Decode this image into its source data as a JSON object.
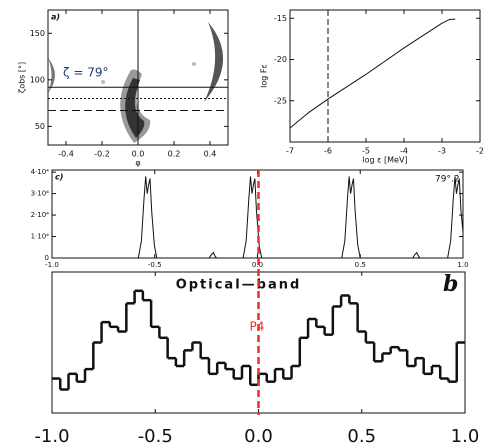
{
  "chart_data": [
    {
      "type": "density",
      "panel_label": "a)",
      "annotation": "ζ = 79°",
      "xlabel": "φ",
      "ylabel": "ζobs [°]",
      "xlim": [
        -0.5,
        0.5
      ],
      "ylim": [
        30,
        175
      ],
      "xticks": [
        -0.4,
        -0.2,
        {
          "value": 0,
          "label": "0.0"
        },
        0.2,
        0.4
      ],
      "yticks": [
        50,
        100,
        150
      ],
      "vlines": [
        0
      ],
      "hlines": [
        92,
        80,
        67
      ]
    },
    {
      "type": "line",
      "xlabel": "log ε [MeV]",
      "ylabel": "log Fε",
      "xlim": [
        -7,
        -2
      ],
      "ylim": [
        -30,
        -14
      ],
      "xticks": [
        -7,
        -6,
        -5,
        -4,
        -3,
        -2
      ],
      "yticks": [
        -25,
        -20,
        -15
      ],
      "vlines": [
        -6
      ],
      "series": [
        {
          "color": "#111111",
          "x": [
            -7,
            -6.5,
            -6,
            -5,
            -4,
            -3,
            -2.8,
            -2.65
          ],
          "values": [
            -28.3,
            -26.4,
            -24.8,
            -21.8,
            -18.6,
            -15.6,
            -15.15,
            -15.1
          ]
        }
      ]
    },
    {
      "type": "line",
      "panel_label": "c)",
      "annotation": "79°.2",
      "xlim": [
        -1,
        1
      ],
      "ylim": [
        0,
        41000
      ],
      "xticks": [
        {
          "value": -1,
          "label": "-1.0"
        },
        -0.5,
        {
          "value": 0,
          "label": "0.0"
        },
        0.5,
        {
          "value": 1,
          "label": "1.0"
        }
      ],
      "yticks": [
        0,
        {
          "value": 10000,
          "label": "1·10⁴"
        },
        {
          "value": 20000,
          "label": "2·10⁴"
        },
        {
          "value": 30000,
          "label": "3·10⁴"
        },
        {
          "value": 40000,
          "label": "4·10⁴"
        }
      ],
      "series": [
        {
          "color": "#111111",
          "x": [
            -1.0,
            -0.58,
            -0.565,
            -0.552,
            -0.544,
            -0.537,
            -0.53,
            -0.523,
            -0.515,
            -0.502,
            -0.49,
            -0.235,
            -0.225,
            -0.215,
            -0.205,
            -0.198,
            -0.07,
            -0.055,
            -0.042,
            -0.034,
            -0.027,
            -0.02,
            -0.013,
            -0.005,
            0.008,
            0.02,
            0.41,
            0.425,
            0.438,
            0.446,
            0.453,
            0.46,
            0.467,
            0.475,
            0.488,
            0.5,
            0.755,
            0.765,
            0.775,
            0.785,
            0.792,
            0.925,
            0.94,
            0.953,
            0.961,
            0.968,
            0.975,
            0.982,
            0.99,
            1.0
          ],
          "values": [
            0,
            0,
            8000,
            28000,
            38000,
            30000,
            34000,
            37000,
            22000,
            6000,
            0,
            0,
            1500,
            2500,
            600,
            0,
            0,
            8000,
            28000,
            38000,
            30000,
            34000,
            37000,
            22000,
            6000,
            0,
            0,
            8000,
            28000,
            38000,
            30000,
            34000,
            37000,
            22000,
            6000,
            0,
            0,
            1500,
            2500,
            600,
            0,
            0,
            8000,
            28000,
            38000,
            30000,
            34000,
            37000,
            22000,
            12000
          ]
        }
      ]
    },
    {
      "type": "histogram",
      "title": "Optical—band",
      "panel_label": "b",
      "xlim": [
        -1,
        1
      ],
      "ylim": [
        0,
        90
      ],
      "xticks": [
        {
          "value": -1,
          "label": "-1.0"
        },
        -0.5,
        {
          "value": 0,
          "label": "0.0"
        },
        0.5,
        {
          "value": 1,
          "label": "1.0"
        }
      ],
      "vlines": [
        0
      ],
      "vline_label": "P4",
      "vline_color": "#e8322a",
      "color": "#111111",
      "bins": [
        -1.0,
        -0.96,
        -0.92,
        -0.88,
        -0.84,
        -0.8,
        -0.76,
        -0.72,
        -0.68,
        -0.64,
        -0.6,
        -0.56,
        -0.52,
        -0.48,
        -0.44,
        -0.4,
        -0.36,
        -0.32,
        -0.28,
        -0.24,
        -0.2,
        -0.16,
        -0.12,
        -0.08,
        -0.04,
        0,
        0.04,
        0.08,
        0.12,
        0.16,
        0.2,
        0.24,
        0.28,
        0.32,
        0.36,
        0.4,
        0.44,
        0.48,
        0.52,
        0.56,
        0.6,
        0.64,
        0.68,
        0.72,
        0.76,
        0.8,
        0.84,
        0.88,
        0.92,
        0.96,
        1.0
      ],
      "values": [
        22,
        15,
        25,
        20,
        28,
        45,
        58,
        55,
        52,
        70,
        78,
        72,
        55,
        48,
        35,
        30,
        40,
        45,
        35,
        25,
        32,
        28,
        22,
        30,
        18,
        25,
        20,
        28,
        22,
        30,
        48,
        60,
        55,
        50,
        68,
        75,
        70,
        52,
        45,
        33,
        38,
        42,
        40,
        30,
        35,
        25,
        30,
        22,
        20,
        45
      ]
    }
  ]
}
